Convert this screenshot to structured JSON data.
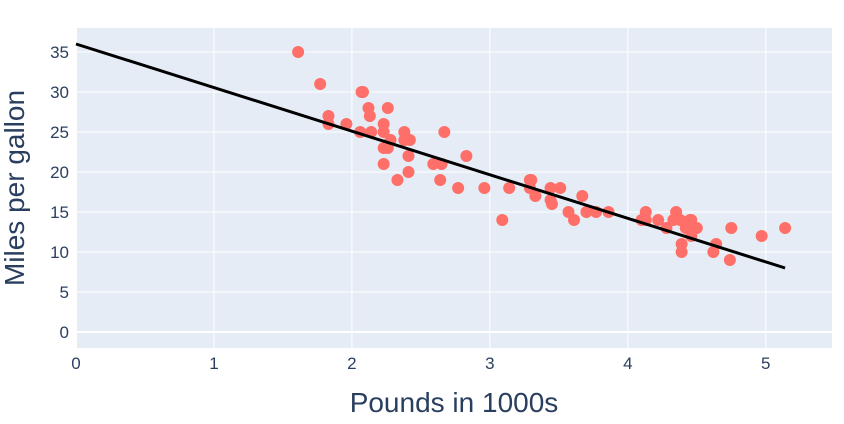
{
  "chart_data": {
    "type": "scatter",
    "title": "",
    "xlabel": "Pounds in 1000s",
    "ylabel": "Miles per gallon",
    "xlim": [
      0,
      5.48
    ],
    "ylim": [
      -2,
      38
    ],
    "xticks": [
      0,
      1,
      2,
      3,
      4,
      5
    ],
    "yticks": [
      0,
      5,
      10,
      15,
      20,
      25,
      30,
      35
    ],
    "grid": true,
    "colors": {
      "marker": "#ff6f69",
      "line": "#000000",
      "plot_bg": "#e5ecf6"
    },
    "points": [
      [
        1.61,
        35
      ],
      [
        1.77,
        31
      ],
      [
        1.83,
        27
      ],
      [
        1.83,
        26
      ],
      [
        1.96,
        26
      ],
      [
        2.07,
        30
      ],
      [
        2.08,
        30
      ],
      [
        2.12,
        28
      ],
      [
        2.13,
        27
      ],
      [
        2.26,
        28
      ],
      [
        2.06,
        25
      ],
      [
        2.14,
        25
      ],
      [
        2.23,
        26
      ],
      [
        2.23,
        25
      ],
      [
        2.23,
        23
      ],
      [
        2.23,
        21
      ],
      [
        2.26,
        23
      ],
      [
        2.28,
        24
      ],
      [
        2.33,
        19
      ],
      [
        2.38,
        25
      ],
      [
        2.38,
        24
      ],
      [
        2.42,
        24
      ],
      [
        2.41,
        22
      ],
      [
        2.41,
        20
      ],
      [
        2.67,
        25
      ],
      [
        2.59,
        21
      ],
      [
        2.65,
        21
      ],
      [
        2.64,
        19
      ],
      [
        2.77,
        18
      ],
      [
        2.83,
        22
      ],
      [
        2.96,
        18
      ],
      [
        3.09,
        14
      ],
      [
        3.14,
        18
      ],
      [
        3.29,
        19
      ],
      [
        3.3,
        19
      ],
      [
        3.29,
        18
      ],
      [
        3.33,
        17
      ],
      [
        3.44,
        18
      ],
      [
        3.45,
        16
      ],
      [
        3.44,
        16.5
      ],
      [
        3.51,
        18
      ],
      [
        3.57,
        15
      ],
      [
        3.61,
        14
      ],
      [
        3.67,
        17
      ],
      [
        3.7,
        15
      ],
      [
        3.77,
        15
      ],
      [
        3.86,
        15
      ],
      [
        4.1,
        14
      ],
      [
        4.13,
        15
      ],
      [
        4.13,
        14
      ],
      [
        4.22,
        14
      ],
      [
        4.28,
        13
      ],
      [
        4.33,
        14
      ],
      [
        4.35,
        15
      ],
      [
        4.38,
        14
      ],
      [
        4.39,
        11
      ],
      [
        4.39,
        10
      ],
      [
        4.42,
        13
      ],
      [
        4.45,
        14
      ],
      [
        4.46,
        12
      ],
      [
        4.46,
        14
      ],
      [
        4.5,
        13
      ],
      [
        4.62,
        10
      ],
      [
        4.64,
        11
      ],
      [
        4.74,
        9
      ],
      [
        4.75,
        13
      ],
      [
        4.97,
        12
      ],
      [
        5.14,
        13
      ]
    ],
    "fit_line": [
      [
        0,
        36
      ],
      [
        5.14,
        8
      ]
    ]
  }
}
